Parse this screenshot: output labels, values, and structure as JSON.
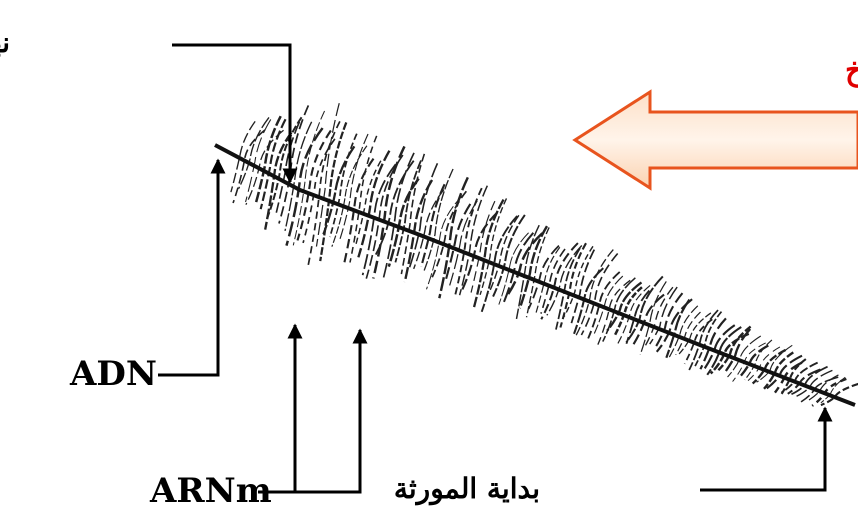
{
  "labels": {
    "gene_end": "نهاية المورثة",
    "direction": "إتجاه الإستنساخ",
    "dna": "ADN",
    "mrna": "ARNm",
    "gene_start": "بداية المورثة"
  }
}
